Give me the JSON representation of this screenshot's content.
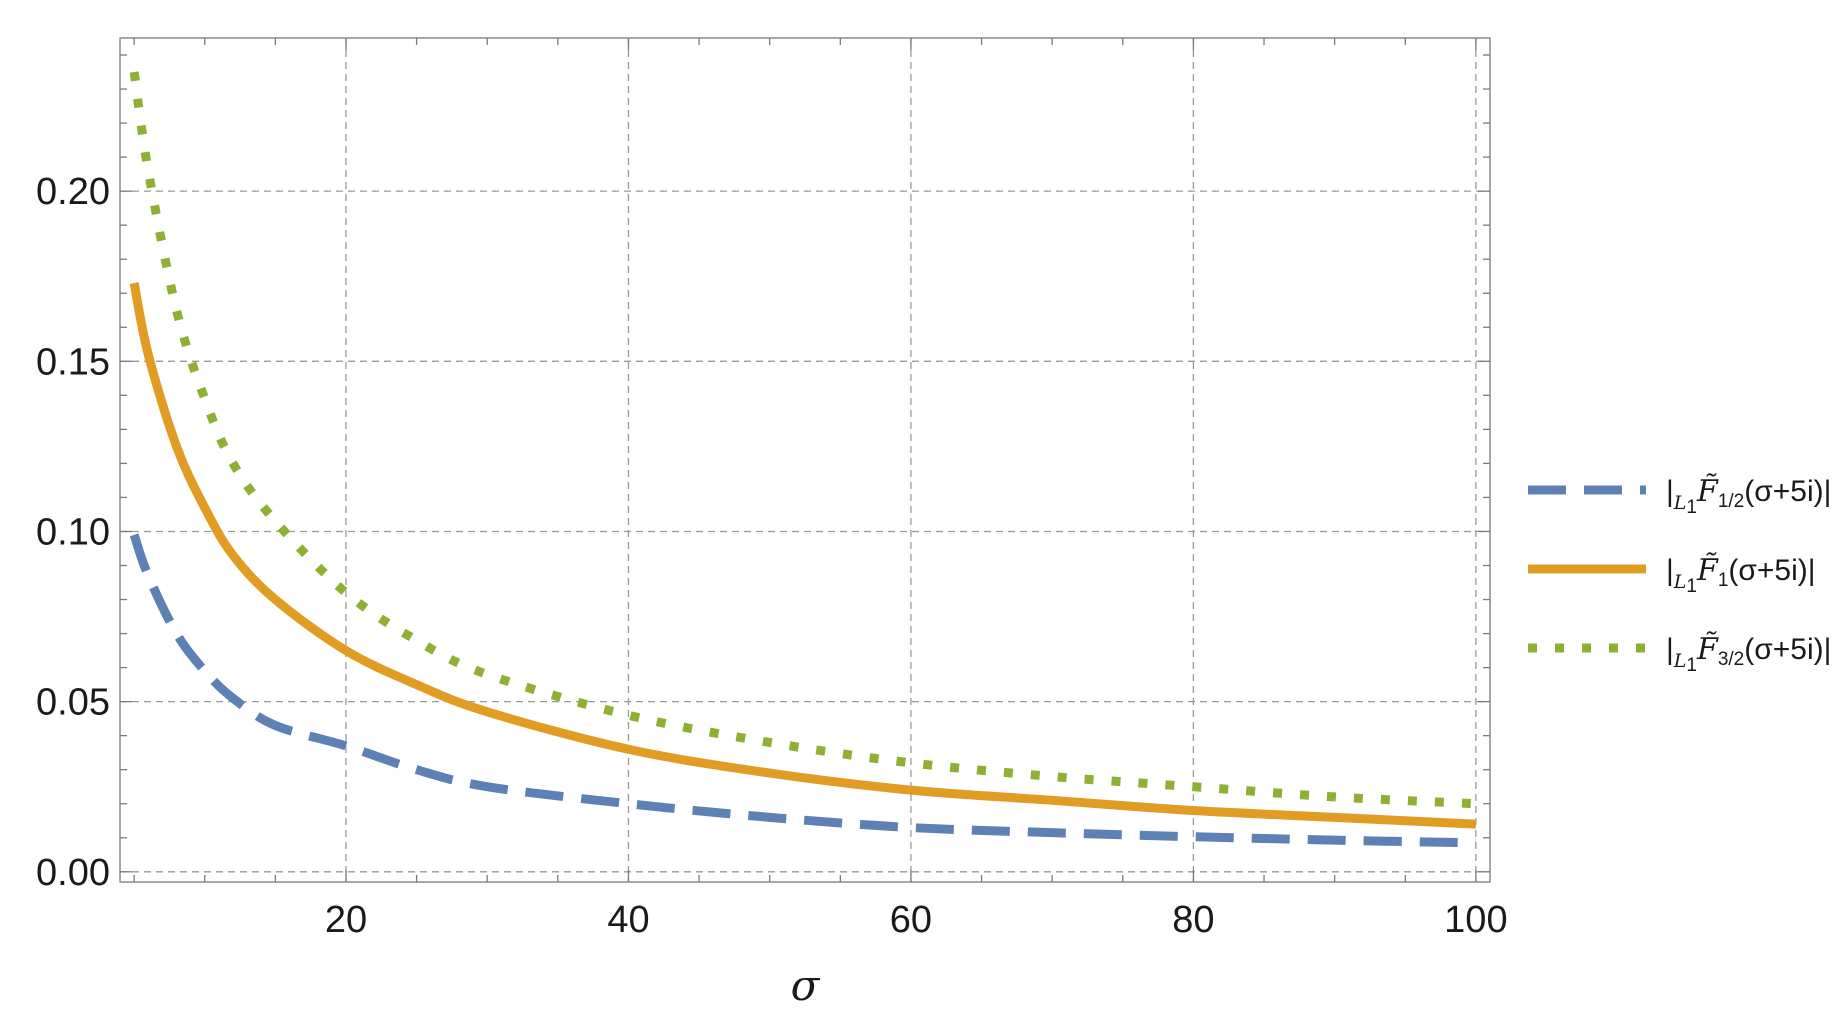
{
  "chart_data": {
    "type": "line",
    "title": "",
    "xlabel": "σ",
    "ylabel": "",
    "xlim": [
      4,
      101
    ],
    "ylim": [
      -0.003,
      0.245
    ],
    "xticks": [
      20,
      40,
      60,
      80,
      100
    ],
    "xtick_labels": [
      "20",
      "40",
      "60",
      "80",
      "100"
    ],
    "yticks": [
      0.0,
      0.05,
      0.1,
      0.15,
      0.2
    ],
    "ytick_labels": [
      "0.00",
      "0.05",
      "0.10",
      "0.15",
      "0.20"
    ],
    "grid": true,
    "legend_position": "right",
    "series": [
      {
        "name": "|L₁F̃1/2(σ+5i)|",
        "name_parts": {
          "pre": "|",
          "sub1": "L",
          "sub1b": "1",
          "F": "F̃",
          "sub2": "1/2",
          "post": "(σ+5i)|"
        },
        "color": "#5e81b5",
        "style": "dashed",
        "x": [
          5,
          6,
          8,
          10,
          12,
          15,
          20,
          25,
          30,
          40,
          50,
          60,
          70,
          80,
          90,
          100
        ],
        "values": [
          0.099,
          0.087,
          0.07,
          0.059,
          0.051,
          0.043,
          0.037,
          0.03,
          0.025,
          0.02,
          0.016,
          0.013,
          0.0115,
          0.0103,
          0.0093,
          0.0085
        ]
      },
      {
        "name": "|L₁F̃1(σ+5i)|",
        "name_parts": {
          "pre": "|",
          "sub1": "L",
          "sub1b": "1",
          "F": "F̃",
          "sub2": "1",
          "post": "(σ+5i)|"
        },
        "color": "#e19c24",
        "style": "solid",
        "x": [
          5,
          6,
          8,
          10,
          12,
          15,
          20,
          25,
          30,
          40,
          50,
          60,
          70,
          80,
          90,
          100
        ],
        "values": [
          0.173,
          0.152,
          0.125,
          0.107,
          0.093,
          0.08,
          0.065,
          0.055,
          0.047,
          0.036,
          0.029,
          0.024,
          0.021,
          0.018,
          0.016,
          0.014
        ]
      },
      {
        "name": "|L₁F̃3/2(σ+5i)|",
        "name_parts": {
          "pre": "|",
          "sub1": "L",
          "sub1b": "1",
          "F": "F̃",
          "sub2": "3/2",
          "post": "(σ+5i)|"
        },
        "color": "#8fb032",
        "style": "dotted",
        "x": [
          5,
          6,
          8,
          10,
          12,
          15,
          20,
          25,
          30,
          40,
          50,
          60,
          70,
          80,
          90,
          100
        ],
        "values": [
          0.235,
          0.206,
          0.165,
          0.139,
          0.12,
          0.103,
          0.082,
          0.068,
          0.058,
          0.046,
          0.038,
          0.032,
          0.028,
          0.025,
          0.022,
          0.02
        ]
      }
    ]
  }
}
